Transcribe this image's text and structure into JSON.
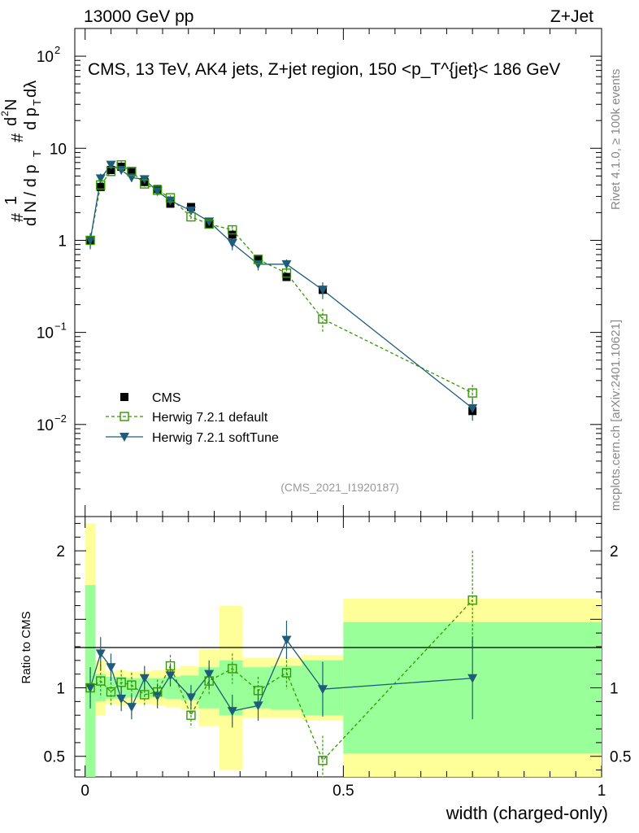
{
  "header": {
    "energy_label": "13000 GeV pp",
    "process_label": "Z+Jet"
  },
  "side_labels": {
    "rivet": "Rivet 4.1.0, ≥ 100k events",
    "mcplots": "mcplots.cern.ch [arXiv:2401.10621]"
  },
  "chart_data": {
    "type": "line",
    "title": "CMS, 13 TeV, AK4 jets, Z+jet region, 150 <p_T^{jet}< 186 GeV",
    "analysis_tag": "(CMS_2021_I1920187)",
    "xlabel": "width (charged-only)",
    "ylabel_parts": [
      "#",
      "1",
      "d N / d p",
      "T",
      "#",
      "d",
      "2",
      "N",
      "d p",
      "T",
      "dλ"
    ],
    "ratio_ylabel": "Ratio to CMS",
    "xlim": [
      -0.02,
      1.0
    ],
    "ylim_log": [
      0.001,
      200
    ],
    "ratio_ylim": [
      0.35,
      2.25
    ],
    "x_ticks": [
      {
        "value": 0,
        "label": "0"
      },
      {
        "value": 0.5,
        "label": "0.5"
      },
      {
        "value": 1,
        "label": "1"
      }
    ],
    "y_ticks": [
      {
        "value": 100,
        "base": "10",
        "exp": "2"
      },
      {
        "value": 10,
        "base": "10",
        "exp": ""
      },
      {
        "value": 1,
        "base": "1",
        "exp": ""
      },
      {
        "value": 0.1,
        "base": "10",
        "exp": "−1"
      },
      {
        "value": 0.01,
        "base": "10",
        "exp": "−2"
      }
    ],
    "ratio_ticks": [
      {
        "value": 2,
        "label": "2"
      },
      {
        "value": 1,
        "label": "1"
      },
      {
        "value": 0.5,
        "label": "0.5"
      }
    ],
    "legend": [
      {
        "key": "cms",
        "label": "CMS"
      },
      {
        "key": "default",
        "label": "Herwig 7.2.1 default"
      },
      {
        "key": "softtune",
        "label": "Herwig 7.2.1 softTune"
      }
    ],
    "colors": {
      "cms": "#000000",
      "default": "#339900",
      "softtune": "#1f5c7a",
      "band_outer": "#ffff99",
      "band_inner": "#99ff99"
    },
    "bins": [
      {
        "lo": 0.0,
        "hi": 0.02,
        "x": 0.01,
        "cms": 1.0,
        "default": 1.0,
        "softtune": 1.0,
        "err_default": 0.2,
        "err_softtune": 0.2,
        "band_inner": 0.75,
        "band_outer": 1.2
      },
      {
        "lo": 0.02,
        "hi": 0.04,
        "x": 0.03,
        "cms": 3.8,
        "default": 4.0,
        "softtune": 4.7,
        "err_default": 0.5,
        "err_softtune": 0.6,
        "band_inner": 0.1,
        "band_outer": 0.2
      },
      {
        "lo": 0.04,
        "hi": 0.06,
        "x": 0.05,
        "cms": 5.8,
        "default": 5.6,
        "softtune": 6.6,
        "err_default": 0.6,
        "err_softtune": 0.6,
        "band_inner": 0.08,
        "band_outer": 0.12
      },
      {
        "lo": 0.06,
        "hi": 0.08,
        "x": 0.07,
        "cms": 6.3,
        "default": 6.6,
        "softtune": 5.8,
        "err_default": 0.6,
        "err_softtune": 0.6,
        "band_inner": 0.08,
        "band_outer": 0.13
      },
      {
        "lo": 0.08,
        "hi": 0.1,
        "x": 0.09,
        "cms": 5.5,
        "default": 5.6,
        "softtune": 4.8,
        "err_default": 0.5,
        "err_softtune": 0.5,
        "band_inner": 0.07,
        "band_outer": 0.12
      },
      {
        "lo": 0.1,
        "hi": 0.13,
        "x": 0.115,
        "cms": 4.3,
        "default": 4.1,
        "softtune": 4.6,
        "err_default": 0.4,
        "err_softtune": 0.4,
        "band_inner": 0.07,
        "band_outer": 0.12
      },
      {
        "lo": 0.13,
        "hi": 0.155,
        "x": 0.14,
        "cms": 3.6,
        "default": 3.5,
        "softtune": 3.4,
        "err_default": 0.3,
        "err_softtune": 0.3,
        "band_inner": 0.07,
        "band_outer": 0.13
      },
      {
        "lo": 0.155,
        "hi": 0.185,
        "x": 0.165,
        "cms": 2.5,
        "default": 2.9,
        "softtune": 2.7,
        "err_default": 0.2,
        "err_softtune": 0.2,
        "band_inner": 0.08,
        "band_outer": 0.14
      },
      {
        "lo": 0.185,
        "hi": 0.22,
        "x": 0.205,
        "cms": 2.3,
        "default": 1.8,
        "softtune": 2.1,
        "err_default": 0.2,
        "err_softtune": 0.2,
        "band_inner": 0.09,
        "band_outer": 0.16
      },
      {
        "lo": 0.22,
        "hi": 0.26,
        "x": 0.24,
        "cms": 1.5,
        "default": 1.5,
        "softtune": 1.6,
        "err_default": 0.15,
        "err_softtune": 0.15,
        "band_inner": 0.15,
        "band_outer": 0.28
      },
      {
        "lo": 0.26,
        "hi": 0.305,
        "x": 0.285,
        "cms": 1.15,
        "default": 1.3,
        "softtune": 0.93,
        "err_default": 0.12,
        "err_softtune": 0.15,
        "band_inner": 0.2,
        "band_outer": 0.6
      },
      {
        "lo": 0.305,
        "hi": 0.36,
        "x": 0.335,
        "cms": 0.63,
        "default": 0.62,
        "softtune": 0.55,
        "err_default": 0.06,
        "err_softtune": 0.08,
        "band_inner": 0.15,
        "band_outer": 0.22
      },
      {
        "lo": 0.36,
        "hi": 0.42,
        "x": 0.39,
        "cms": 0.4,
        "default": 0.44,
        "softtune": 0.55,
        "err_default": 0.05,
        "err_softtune": 0.07,
        "band_inner": 0.16,
        "band_outer": 0.22
      },
      {
        "lo": 0.42,
        "hi": 0.5,
        "x": 0.46,
        "cms": 0.29,
        "default": 0.14,
        "softtune": 0.29,
        "err_default": 0.04,
        "err_softtune": 0.06,
        "band_inner": 0.2,
        "band_outer": 0.24
      },
      {
        "lo": 0.5,
        "hi": 1.0,
        "x": 0.75,
        "cms": 0.014,
        "default": 0.022,
        "softtune": 0.015,
        "err_default": 0.005,
        "err_softtune": 0.004,
        "band_inner": 0.48,
        "band_outer": 0.65
      }
    ],
    "ratio_default": [
      1.0,
      1.05,
      0.97,
      1.04,
      1.02,
      0.95,
      0.97,
      1.16,
      0.8,
      1.05,
      1.14,
      0.98,
      1.11,
      0.47,
      1.64
    ],
    "ratio_softtune": [
      1.0,
      1.25,
      1.15,
      0.92,
      0.86,
      1.07,
      0.94,
      1.09,
      0.93,
      1.1,
      0.83,
      0.87,
      1.35,
      0.99,
      1.07
    ],
    "ratio_err_default": [
      0.15,
      0.12,
      0.1,
      0.09,
      0.09,
      0.09,
      0.09,
      0.08,
      0.09,
      0.1,
      0.11,
      0.1,
      0.12,
      0.18,
      0.36
    ],
    "ratio_err_softtune": [
      0.15,
      0.12,
      0.1,
      0.09,
      0.09,
      0.09,
      0.09,
      0.08,
      0.09,
      0.1,
      0.12,
      0.11,
      0.14,
      0.2,
      0.3
    ]
  }
}
